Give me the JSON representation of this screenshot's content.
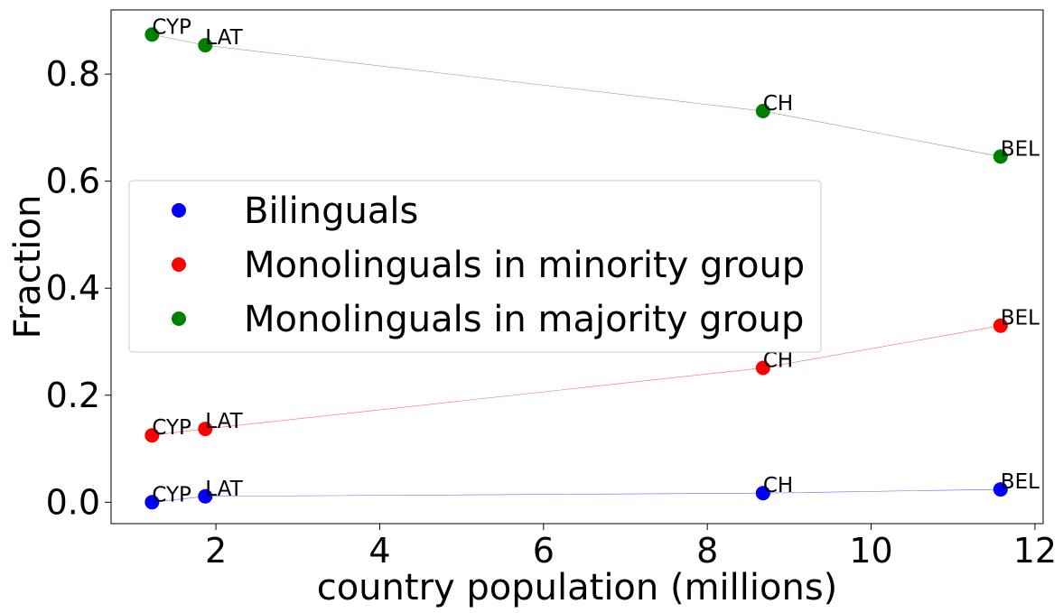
{
  "chart_data": {
    "type": "scatter",
    "xlabel": "country population (millions)",
    "ylabel": "Fraction",
    "xlim": [
      0.72,
      12.1
    ],
    "ylim": [
      -0.04,
      0.92
    ],
    "xticks": [
      2,
      4,
      6,
      8,
      10,
      12
    ],
    "yticks": [
      0.0,
      0.2,
      0.4,
      0.6,
      0.8
    ],
    "xtick_labels": [
      "2",
      "4",
      "6",
      "8",
      "10",
      "12"
    ],
    "ytick_labels": [
      "0.0",
      "0.2",
      "0.4",
      "0.6",
      "0.8"
    ],
    "grid": false,
    "legend_position": "center-left",
    "categories": [
      "CYP",
      "LAT",
      "CH",
      "BEL"
    ],
    "x": [
      1.22,
      1.87,
      8.68,
      11.58
    ],
    "series": [
      {
        "name": "Bilinguals",
        "color": "#0000ff",
        "values": [
          0.0,
          0.011,
          0.017,
          0.024
        ]
      },
      {
        "name": "Monolinguals in minority group",
        "color": "#ff0000",
        "values": [
          0.125,
          0.137,
          0.251,
          0.33
        ]
      },
      {
        "name": "Monolinguals in majority group",
        "color": "#008000",
        "values": [
          0.874,
          0.854,
          0.731,
          0.646
        ]
      }
    ]
  }
}
